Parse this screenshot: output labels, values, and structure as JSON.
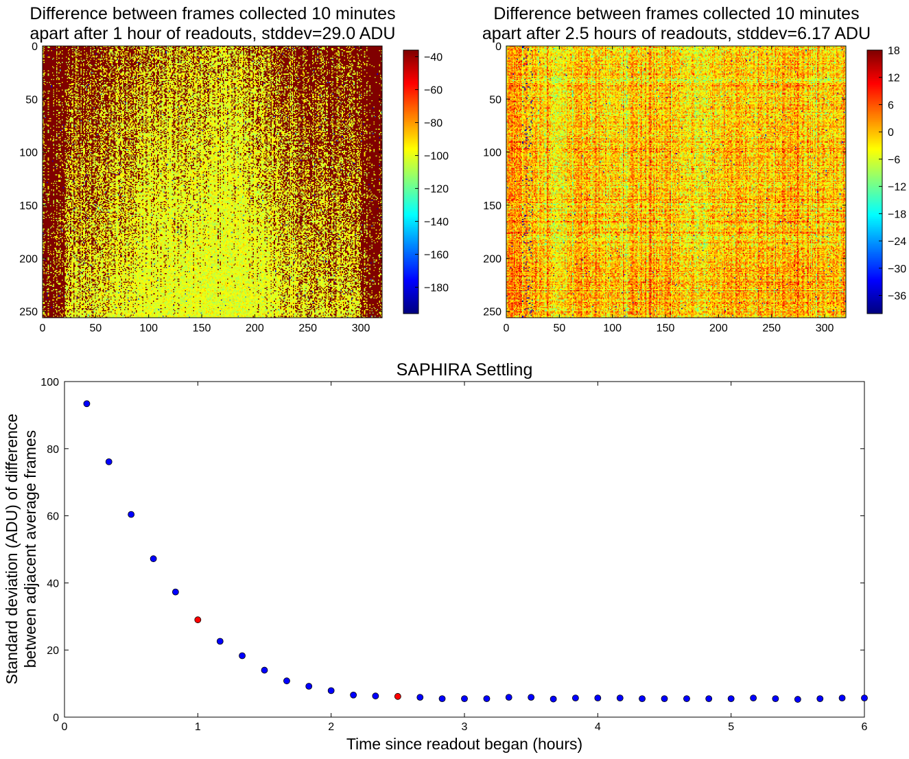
{
  "figure": {
    "panels": {
      "left": {
        "title_line1": "Difference between frames collected 10 minutes",
        "title_line2": "apart after 1 hour of readouts, stddev=29.0 ADU"
      },
      "right": {
        "title_line1": "Difference between frames collected 10 minutes",
        "title_line2": "apart after 2.5 hours of readouts, stddev=6.17 ADU"
      }
    }
  },
  "chart_data": [
    {
      "type": "heatmap",
      "title": "Difference between frames collected 10 minutes apart after 1 hour of readouts, stddev=29.0 ADU",
      "xlim": [
        0,
        320
      ],
      "ylim": [
        256,
        0
      ],
      "xticks": [
        0,
        50,
        100,
        150,
        200,
        250,
        300
      ],
      "yticks": [
        0,
        50,
        100,
        150,
        200,
        250
      ],
      "colorbar": {
        "range": [
          -196,
          -36
        ],
        "ticks": [
          -40,
          -60,
          -80,
          -100,
          -120,
          -140,
          -160,
          -180
        ]
      },
      "pattern": "mostly saturated red (above -40) with vertical streaks; yellow-green (about -100) region in center and lower rows",
      "colormap": "jet"
    },
    {
      "type": "heatmap",
      "title": "Difference between frames collected 10 minutes apart after 2.5 hours of readouts, stddev=6.17 ADU",
      "xlim": [
        0,
        320
      ],
      "ylim": [
        256,
        0
      ],
      "xticks": [
        0,
        50,
        100,
        150,
        200,
        250,
        300
      ],
      "yticks": [
        0,
        50,
        100,
        150,
        200,
        250
      ],
      "colorbar": {
        "range": [
          -40,
          18
        ],
        "ticks": [
          18,
          12,
          6,
          0,
          -6,
          -12,
          -18,
          -24,
          -30,
          -36
        ]
      },
      "pattern": "mostly yellow (about 0) noise with cyan patches and orange/red speckle; dark outliers near columns 15-25",
      "colormap": "jet"
    },
    {
      "type": "scatter",
      "title": "SAPHIRA Settling",
      "xlabel": "Time since readout began (hours)",
      "ylabel_line1": "Standard deviation (ADU) of difference",
      "ylabel_line2": "between adjacent average frames",
      "xlim": [
        0,
        6
      ],
      "ylim": [
        0,
        100
      ],
      "xticks": [
        0,
        1,
        2,
        3,
        4,
        5,
        6
      ],
      "yticks": [
        0,
        20,
        40,
        60,
        80,
        100
      ],
      "colors": {
        "normal": "#0000ff",
        "highlight": "#ff0000"
      },
      "x": [
        0.167,
        0.333,
        0.5,
        0.667,
        0.833,
        1.0,
        1.167,
        1.333,
        1.5,
        1.667,
        1.833,
        2.0,
        2.167,
        2.333,
        2.5,
        2.667,
        2.833,
        3.0,
        3.167,
        3.333,
        3.5,
        3.667,
        3.833,
        4.0,
        4.167,
        4.333,
        4.5,
        4.667,
        4.833,
        5.0,
        5.167,
        5.333,
        5.5,
        5.667,
        5.833,
        6.0
      ],
      "y": [
        93.4,
        76.1,
        60.4,
        47.2,
        37.3,
        29.0,
        22.6,
        18.3,
        14.0,
        10.8,
        9.2,
        7.9,
        6.6,
        6.3,
        6.17,
        5.9,
        5.5,
        5.5,
        5.5,
        5.9,
        5.9,
        5.4,
        5.7,
        5.7,
        5.7,
        5.5,
        5.5,
        5.5,
        5.5,
        5.5,
        5.7,
        5.5,
        5.3,
        5.5,
        5.7,
        5.7
      ],
      "highlighted": [
        1.0,
        2.5
      ]
    }
  ]
}
